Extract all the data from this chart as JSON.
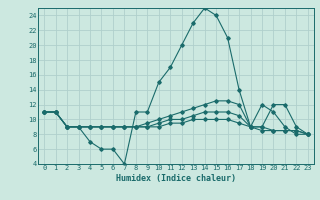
{
  "xlabel": "Humidex (Indice chaleur)",
  "ylabel": "",
  "bg_color": "#cce8e0",
  "grid_color": "#b0d0cc",
  "line_color": "#1a6b6b",
  "xlim": [
    -0.5,
    23.5
  ],
  "ylim": [
    4,
    25
  ],
  "xticks": [
    0,
    1,
    2,
    3,
    4,
    5,
    6,
    7,
    8,
    9,
    10,
    11,
    12,
    13,
    14,
    15,
    16,
    17,
    18,
    19,
    20,
    21,
    22,
    23
  ],
  "yticks": [
    4,
    6,
    8,
    10,
    12,
    14,
    16,
    18,
    20,
    22,
    24
  ],
  "series": [
    {
      "x": [
        0,
        1,
        2,
        3,
        4,
        5,
        6,
        7,
        8,
        9,
        10,
        11,
        12,
        13,
        14,
        15,
        16,
        17,
        18,
        19,
        20,
        21,
        22,
        23
      ],
      "y": [
        11,
        11,
        9,
        9,
        7,
        6,
        6,
        4,
        11,
        11,
        15,
        17,
        20,
        23,
        25,
        24,
        21,
        14,
        9,
        12,
        11,
        9,
        8,
        8
      ]
    },
    {
      "x": [
        0,
        1,
        2,
        3,
        4,
        5,
        6,
        7,
        8,
        9,
        10,
        11,
        12,
        13,
        14,
        15,
        16,
        17,
        18,
        19,
        20,
        21,
        22,
        23
      ],
      "y": [
        11,
        11,
        9,
        9,
        9,
        9,
        9,
        9,
        9,
        9.5,
        10,
        10.5,
        11,
        11.5,
        12,
        12.5,
        12.5,
        12,
        9,
        9,
        12,
        12,
        9,
        8
      ]
    },
    {
      "x": [
        0,
        1,
        2,
        3,
        4,
        5,
        6,
        7,
        8,
        9,
        10,
        11,
        12,
        13,
        14,
        15,
        16,
        17,
        18,
        19,
        20,
        21,
        22,
        23
      ],
      "y": [
        11,
        11,
        9,
        9,
        9,
        9,
        9,
        9,
        9,
        9,
        9.5,
        10,
        10,
        10.5,
        11,
        11,
        11,
        10.5,
        9,
        9,
        8.5,
        8.5,
        8.5,
        8
      ]
    },
    {
      "x": [
        0,
        1,
        2,
        3,
        4,
        5,
        6,
        7,
        8,
        9,
        10,
        11,
        12,
        13,
        14,
        15,
        16,
        17,
        18,
        19,
        20,
        21,
        22,
        23
      ],
      "y": [
        11,
        11,
        9,
        9,
        9,
        9,
        9,
        9,
        9,
        9,
        9,
        9.5,
        9.5,
        10,
        10,
        10,
        10,
        9.5,
        9,
        8.5,
        8.5,
        8.5,
        8.5,
        8
      ]
    }
  ]
}
